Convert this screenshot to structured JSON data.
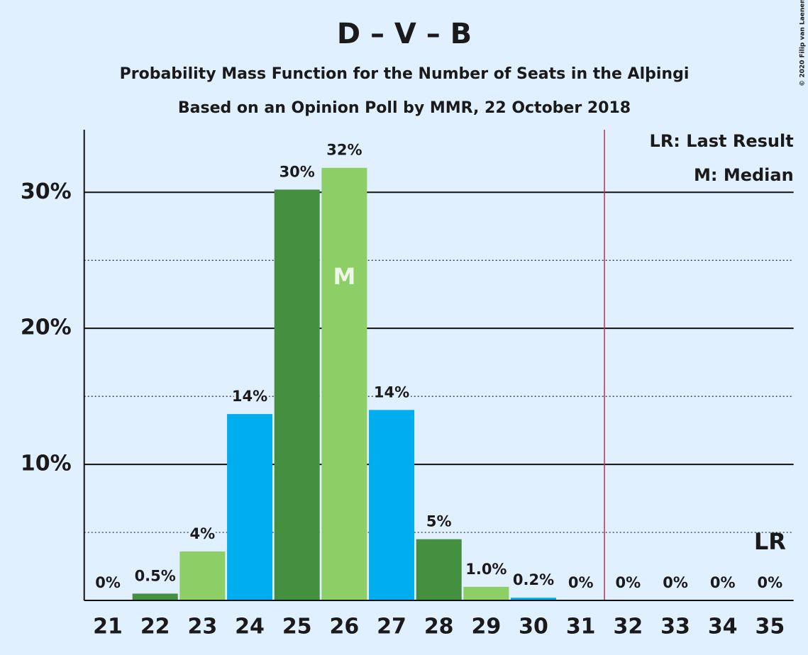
{
  "chart_data": {
    "type": "bar",
    "title": "D – V – B",
    "subtitle": "Probability Mass Function for the Number of Seats in the Alþingi",
    "subtitle2": "Based on an Opinion Poll by MMR, 22 October 2018",
    "copyright": "© 2020 Filip van Laenen",
    "categories": [
      "21",
      "22",
      "23",
      "24",
      "25",
      "26",
      "27",
      "28",
      "29",
      "30",
      "31",
      "32",
      "33",
      "34",
      "35"
    ],
    "values": [
      0,
      0.5,
      3.6,
      13.7,
      30.2,
      31.8,
      14.0,
      4.5,
      1.0,
      0.2,
      0,
      0,
      0,
      0,
      0
    ],
    "value_labels": [
      "0%",
      "0.5%",
      "4%",
      "14%",
      "30%",
      "32%",
      "14%",
      "5%",
      "1.0%",
      "0.2%",
      "0%",
      "0%",
      "0%",
      "0%",
      "0%"
    ],
    "colors": [
      "#00aeef",
      "#458f41",
      "#8ece66",
      "#00aeef",
      "#458f41",
      "#8ece66",
      "#00aeef",
      "#458f41",
      "#8ece66",
      "#00aeef",
      "#458f41",
      "#8ece66",
      "#00aeef",
      "#458f41",
      "#8ece66"
    ],
    "ylim": [
      0,
      34.6
    ],
    "yticks": [
      {
        "value": 10,
        "label": "10%"
      },
      {
        "value": 20,
        "label": "20%"
      },
      {
        "value": 30,
        "label": "30%"
      }
    ],
    "minor_yticks": [
      5,
      15,
      25
    ],
    "median": "26",
    "median_label": "M",
    "last_result": "35",
    "last_result_label": "LR",
    "majority": "32",
    "legend": [
      "LR: Last Result",
      "M: Median"
    ]
  }
}
